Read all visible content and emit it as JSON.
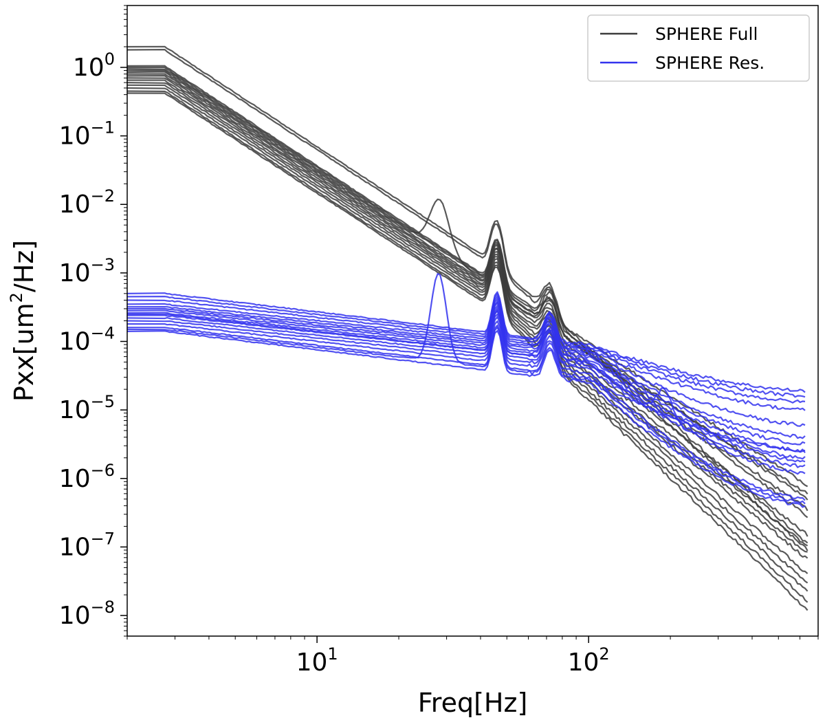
{
  "chart_data": {
    "type": "line",
    "title": "",
    "xlabel": "Freq[Hz]",
    "ylabel_parts": {
      "before": "Pxx[um",
      "sup": "2",
      "after": "/Hz]"
    },
    "xscale": "log",
    "yscale": "log",
    "xlim": [
      2.0,
      700
    ],
    "ylim": [
      5e-09,
      8
    ],
    "x_ticks": [
      {
        "value": 10,
        "base": "10",
        "exp": "1"
      },
      {
        "value": 100,
        "base": "10",
        "exp": "2"
      }
    ],
    "y_ticks": [
      {
        "value": 1,
        "base": "10",
        "exp": "0"
      },
      {
        "value": 0.1,
        "base": "10",
        "exp": "−1"
      },
      {
        "value": 0.01,
        "base": "10",
        "exp": "−2"
      },
      {
        "value": 0.001,
        "base": "10",
        "exp": "−3"
      },
      {
        "value": 0.0001,
        "base": "10",
        "exp": "−4"
      },
      {
        "value": 1e-05,
        "base": "10",
        "exp": "−5"
      },
      {
        "value": 1e-06,
        "base": "10",
        "exp": "−6"
      },
      {
        "value": 1e-07,
        "base": "10",
        "exp": "−7"
      },
      {
        "value": 1e-08,
        "base": "10",
        "exp": "−8"
      }
    ],
    "legend": {
      "position": "top-right",
      "entries": [
        {
          "label": "SPHERE Full",
          "color": "#3c3c3c"
        },
        {
          "label": "SPHERE Res.",
          "color": "#3333ee"
        }
      ]
    },
    "series_groups": [
      {
        "name": "SPHERE Full",
        "color": "#3c3c3c",
        "shape": {
          "low_plateau_end": 2.75,
          "slope": -2.6,
          "knee": 45,
          "knee_slope": -1.9,
          "peak_freqs": [
            46,
            72
          ],
          "peak_gain": [
            3.5,
            1.6
          ]
        },
        "lines": [
          {
            "start": 2.0,
            "end": 1.1e-07,
            "bump": null
          },
          {
            "start": 1.8,
            "end": 9e-08,
            "bump": null
          },
          {
            "start": 1.05,
            "end": 8e-07,
            "bump": null
          },
          {
            "start": 1.0,
            "end": 5e-07,
            "bump": null
          },
          {
            "start": 0.95,
            "end": 2.8e-07,
            "bump": null
          },
          {
            "start": 0.85,
            "end": 1.5e-07,
            "bump": null
          },
          {
            "start": 0.8,
            "end": 1e-07,
            "bump": null
          },
          {
            "start": 0.7,
            "end": 8e-08,
            "bump": null
          },
          {
            "start": 0.65,
            "end": 6.5e-08,
            "bump": null
          },
          {
            "start": 0.6,
            "end": 4e-08,
            "bump": null
          },
          {
            "start": 0.55,
            "end": 3e-08,
            "bump": null
          },
          {
            "start": 0.5,
            "end": 2.2e-08,
            "bump": null
          },
          {
            "start": 0.45,
            "end": 1.6e-08,
            "bump": null
          },
          {
            "start": 0.42,
            "end": 1.2e-08,
            "bump": null
          },
          {
            "start": 0.9,
            "end": 3.5e-07,
            "bump": {
              "freq": 28,
              "height": 0.012
            }
          },
          {
            "start": 0.75,
            "end": 6e-07,
            "bump": {
              "freq": 188,
              "height": 1e-05
            }
          }
        ]
      },
      {
        "name": "SPHERE Res.",
        "color": "#3333ee",
        "shape": {
          "low_plateau_end": 2.75,
          "peak_freqs": [
            46,
            72
          ],
          "peak_gain": [
            3.0,
            1.6
          ]
        },
        "lines": [
          {
            "start": 0.0005,
            "mid": 9e-05,
            "end": 1.9e-05,
            "bump": null
          },
          {
            "start": 0.00045,
            "mid": 8.5e-05,
            "end": 1.6e-05,
            "bump": null
          },
          {
            "start": 0.0004,
            "mid": 8e-05,
            "end": 1.3e-05,
            "bump": null
          },
          {
            "start": 0.00035,
            "mid": 7.5e-05,
            "end": 1e-05,
            "bump": null
          },
          {
            "start": 0.00032,
            "mid": 7e-05,
            "end": 6e-06,
            "bump": null
          },
          {
            "start": 0.0003,
            "mid": 6.5e-05,
            "end": 4e-06,
            "bump": null
          },
          {
            "start": 0.00028,
            "mid": 6e-05,
            "end": 3.2e-06,
            "bump": null
          },
          {
            "start": 0.00026,
            "mid": 5.5e-05,
            "end": 2.5e-06,
            "bump": null
          },
          {
            "start": 0.00024,
            "mid": 5e-05,
            "end": 2e-06,
            "bump": null
          },
          {
            "start": 0.00022,
            "mid": 4.5e-05,
            "end": 1.8e-06,
            "bump": null
          },
          {
            "start": 0.0002,
            "mid": 4e-05,
            "end": 1.5e-06,
            "bump": null
          },
          {
            "start": 0.00018,
            "mid": 3.5e-05,
            "end": 5e-07,
            "bump": null
          },
          {
            "start": 0.00016,
            "mid": 3e-05,
            "end": 4.5e-07,
            "bump": null
          },
          {
            "start": 0.00014,
            "mid": 2.5e-05,
            "end": 4e-07,
            "bump": null
          },
          {
            "start": 0.00015,
            "mid": 2.8e-05,
            "end": 2.5e-06,
            "bump": {
              "freq": 28,
              "height": 0.001
            }
          },
          {
            "start": 0.00025,
            "mid": 5e-05,
            "end": 1.2e-06,
            "bump": {
              "freq": 188,
              "height": 2e-05
            }
          }
        ]
      }
    ]
  }
}
